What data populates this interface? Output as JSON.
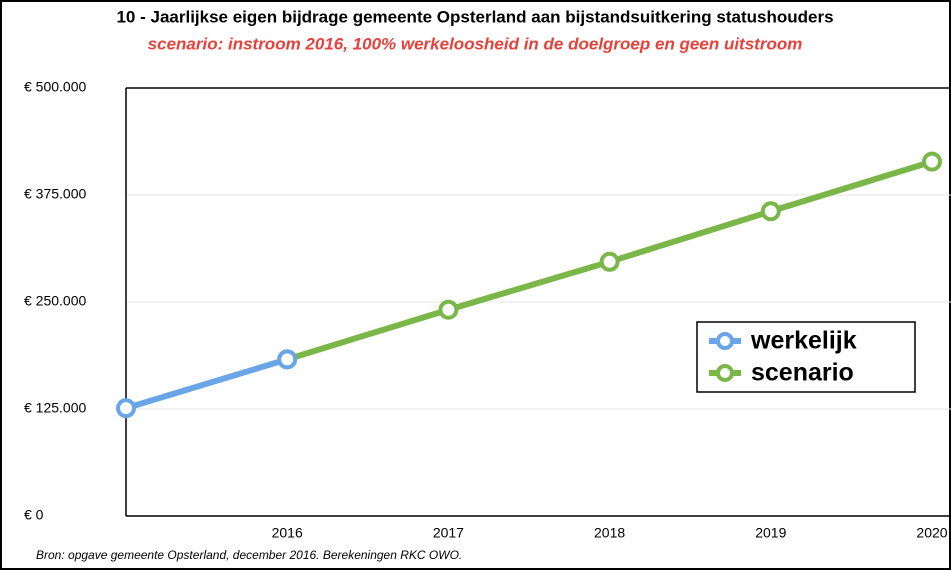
{
  "chart_data": {
    "type": "line",
    "title": "10 - Jaarlijkse eigen bijdrage gemeente Opsterland aan bijstandsuitkering statushouders",
    "subtitle": "scenario: instroom 2016, 100% werkeloosheid in de doelgroep en geen uitstroom",
    "source": "Bron: opgave gemeente Opsterland, december 2016. Berekeningen RKC OWO.",
    "categories": [
      null,
      "2016",
      "2017",
      "2018",
      "2019",
      "2020"
    ],
    "series": [
      {
        "name": "werkelijk",
        "color": "#6aa5e8",
        "values": [
          126000,
          183000,
          null,
          null,
          null,
          null
        ]
      },
      {
        "name": "scenario",
        "color": "#7ab648",
        "values": [
          null,
          183000,
          241000,
          297000,
          356000,
          414000
        ]
      }
    ],
    "ylim": [
      0,
      500000
    ],
    "yticks": [
      {
        "value": 0,
        "label": "€ 0"
      },
      {
        "value": 125000,
        "label": "€ 125.000"
      },
      {
        "value": 250000,
        "label": "€ 250.000"
      },
      {
        "value": 375000,
        "label": "€ 375.000"
      },
      {
        "value": 500000,
        "label": "€ 500.000"
      }
    ],
    "grid": true,
    "legend": "right"
  }
}
